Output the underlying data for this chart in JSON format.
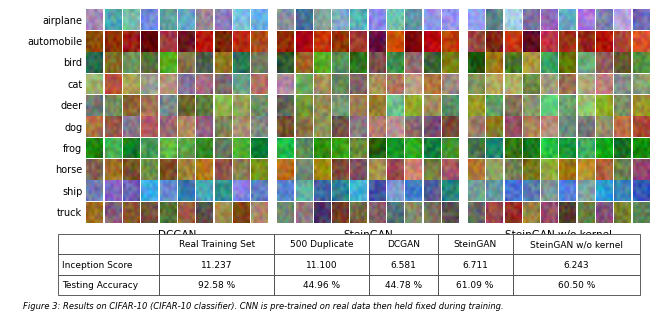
{
  "class_labels": [
    "airplane",
    "automobile",
    "bird",
    "cat",
    "deer",
    "dog",
    "frog",
    "horse",
    "ship",
    "truck"
  ],
  "section_labels": [
    "DCGAN",
    "SteinGAN",
    "SteinGAN w/o kernel"
  ],
  "table_headers": [
    "",
    "Real Training Set",
    "500 Duplicate",
    "DCGAN",
    "SteinGAN",
    "SteinGAN w/o kernel"
  ],
  "table_rows": [
    [
      "Inception Score",
      "11.237",
      "11.100",
      "6.581",
      "6.711",
      "6.243"
    ],
    [
      "Testing Accuracy",
      "92.58 %",
      "44.96 %",
      "44.78 %",
      "61.09 %",
      "60.50 %"
    ]
  ],
  "caption": "Figure 3: Results on CIFAR-10 (CIFAR-10 classifier). CNN is pre-trained on real data then held fixed during training.",
  "bg_color": "#ffffff",
  "label_fontsize": 7.0,
  "section_label_fontsize": 7.5,
  "table_fontsize": 6.5,
  "caption_fontsize": 6.0,
  "class_base_colors": [
    [
      [
        0.5,
        0.6,
        0.8
      ],
      [
        0.4,
        0.5,
        0.7
      ],
      [
        0.6,
        0.65,
        0.75
      ],
      [
        0.55,
        0.6,
        0.72
      ],
      [
        0.45,
        0.55,
        0.78
      ],
      [
        0.5,
        0.58,
        0.82
      ],
      [
        0.52,
        0.62,
        0.76
      ],
      [
        0.48,
        0.57,
        0.79
      ],
      [
        0.54,
        0.63,
        0.77
      ],
      [
        0.47,
        0.56,
        0.81
      ]
    ],
    [
      [
        0.7,
        0.15,
        0.1
      ],
      [
        0.6,
        0.12,
        0.08
      ],
      [
        0.65,
        0.2,
        0.15
      ],
      [
        0.5,
        0.1,
        0.05
      ],
      [
        0.72,
        0.18,
        0.12
      ],
      [
        0.55,
        0.13,
        0.09
      ],
      [
        0.68,
        0.16,
        0.11
      ],
      [
        0.62,
        0.14,
        0.1
      ],
      [
        0.58,
        0.11,
        0.07
      ],
      [
        0.74,
        0.17,
        0.13
      ]
    ],
    [
      [
        0.3,
        0.5,
        0.2
      ],
      [
        0.55,
        0.45,
        0.25
      ],
      [
        0.4,
        0.55,
        0.3
      ],
      [
        0.5,
        0.48,
        0.22
      ],
      [
        0.35,
        0.52,
        0.28
      ],
      [
        0.45,
        0.42,
        0.18
      ],
      [
        0.38,
        0.53,
        0.32
      ],
      [
        0.52,
        0.47,
        0.24
      ],
      [
        0.33,
        0.51,
        0.26
      ],
      [
        0.48,
        0.44,
        0.2
      ]
    ],
    [
      [
        0.6,
        0.55,
        0.45
      ],
      [
        0.55,
        0.5,
        0.4
      ],
      [
        0.65,
        0.58,
        0.48
      ],
      [
        0.52,
        0.47,
        0.38
      ],
      [
        0.58,
        0.53,
        0.43
      ],
      [
        0.62,
        0.56,
        0.46
      ],
      [
        0.57,
        0.52,
        0.42
      ],
      [
        0.63,
        0.57,
        0.47
      ],
      [
        0.54,
        0.49,
        0.39
      ],
      [
        0.6,
        0.54,
        0.44
      ]
    ],
    [
      [
        0.45,
        0.55,
        0.3
      ],
      [
        0.5,
        0.6,
        0.35
      ],
      [
        0.42,
        0.52,
        0.28
      ],
      [
        0.48,
        0.58,
        0.33
      ],
      [
        0.55,
        0.65,
        0.38
      ],
      [
        0.43,
        0.53,
        0.29
      ],
      [
        0.52,
        0.62,
        0.36
      ],
      [
        0.46,
        0.56,
        0.31
      ],
      [
        0.49,
        0.59,
        0.34
      ],
      [
        0.44,
        0.54,
        0.3
      ]
    ],
    [
      [
        0.55,
        0.45,
        0.35
      ],
      [
        0.5,
        0.4,
        0.3
      ],
      [
        0.6,
        0.48,
        0.38
      ],
      [
        0.52,
        0.42,
        0.32
      ],
      [
        0.58,
        0.46,
        0.36
      ],
      [
        0.54,
        0.44,
        0.34
      ],
      [
        0.62,
        0.5,
        0.4
      ],
      [
        0.48,
        0.38,
        0.28
      ],
      [
        0.56,
        0.45,
        0.35
      ],
      [
        0.53,
        0.43,
        0.33
      ]
    ],
    [
      [
        0.2,
        0.55,
        0.2
      ],
      [
        0.25,
        0.6,
        0.25
      ],
      [
        0.18,
        0.52,
        0.18
      ],
      [
        0.22,
        0.57,
        0.22
      ],
      [
        0.28,
        0.62,
        0.28
      ],
      [
        0.19,
        0.53,
        0.19
      ],
      [
        0.24,
        0.59,
        0.24
      ],
      [
        0.21,
        0.56,
        0.21
      ],
      [
        0.26,
        0.61,
        0.26
      ],
      [
        0.17,
        0.51,
        0.17
      ]
    ],
    [
      [
        0.55,
        0.42,
        0.22
      ],
      [
        0.6,
        0.46,
        0.26
      ],
      [
        0.52,
        0.39,
        0.19
      ],
      [
        0.58,
        0.44,
        0.24
      ],
      [
        0.62,
        0.48,
        0.28
      ],
      [
        0.54,
        0.41,
        0.21
      ],
      [
        0.57,
        0.43,
        0.23
      ],
      [
        0.63,
        0.47,
        0.27
      ],
      [
        0.5,
        0.37,
        0.17
      ],
      [
        0.59,
        0.45,
        0.25
      ]
    ],
    [
      [
        0.3,
        0.5,
        0.7
      ],
      [
        0.35,
        0.55,
        0.72
      ],
      [
        0.28,
        0.48,
        0.68
      ],
      [
        0.32,
        0.52,
        0.71
      ],
      [
        0.38,
        0.58,
        0.74
      ],
      [
        0.29,
        0.49,
        0.69
      ],
      [
        0.34,
        0.54,
        0.73
      ],
      [
        0.31,
        0.51,
        0.7
      ],
      [
        0.36,
        0.56,
        0.72
      ],
      [
        0.27,
        0.47,
        0.67
      ]
    ],
    [
      [
        0.45,
        0.38,
        0.28
      ],
      [
        0.5,
        0.42,
        0.32
      ],
      [
        0.42,
        0.35,
        0.25
      ],
      [
        0.48,
        0.4,
        0.3
      ],
      [
        0.52,
        0.44,
        0.34
      ],
      [
        0.44,
        0.37,
        0.27
      ],
      [
        0.47,
        0.39,
        0.29
      ],
      [
        0.53,
        0.45,
        0.35
      ],
      [
        0.4,
        0.33,
        0.23
      ],
      [
        0.49,
        0.41,
        0.31
      ]
    ]
  ]
}
